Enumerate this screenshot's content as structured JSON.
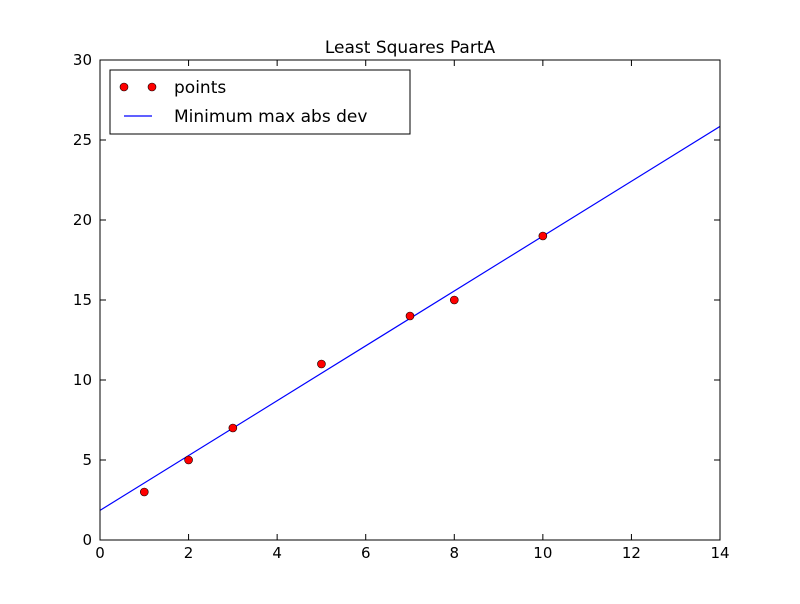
{
  "chart_data": {
    "type": "scatter",
    "title": "Least Squares PartA",
    "xlim": [
      0,
      14
    ],
    "ylim": [
      0,
      30
    ],
    "x_ticks": [
      0,
      2,
      4,
      6,
      8,
      10,
      12,
      14
    ],
    "y_ticks": [
      0,
      5,
      10,
      15,
      20,
      25,
      30
    ],
    "grid": false,
    "legend_position": "top-left",
    "series": [
      {
        "name": "points",
        "kind": "markers",
        "color": "#ff0000",
        "x": [
          1,
          2,
          3,
          5,
          7,
          8,
          10
        ],
        "y": [
          3,
          5,
          7,
          11,
          14,
          15,
          19
        ]
      },
      {
        "name": "Minimum max abs dev",
        "kind": "line",
        "color": "#0000ff",
        "x": [
          0,
          14
        ],
        "y": [
          1.85,
          25.85
        ]
      }
    ]
  }
}
